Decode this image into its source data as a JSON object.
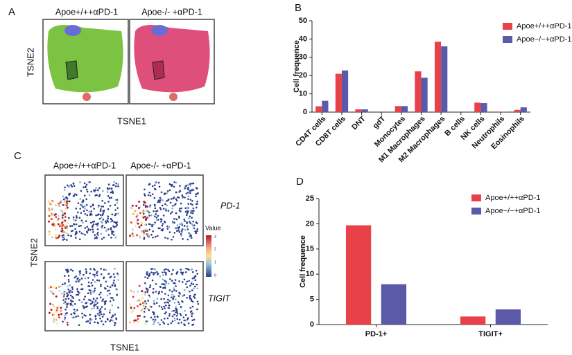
{
  "panels": {
    "a": {
      "letter": "A",
      "titles": [
        "Apoe+/++αPD-1",
        "Apoe-/- +αPD-1"
      ],
      "y_label": "TSNE2",
      "x_label": "TSNE1"
    },
    "c": {
      "letter": "C",
      "titles": [
        "Apoe+/++αPD-1",
        "Apoe-/- +αPD-1"
      ],
      "rows": [
        "PD-1",
        "TIGIT"
      ],
      "colorbar_title": "Value",
      "colorbar_ticks": [
        "3",
        "2",
        "1",
        "0"
      ],
      "y_label": "TSNE2",
      "x_label": "TSNE1"
    },
    "b_letter": "B",
    "d_letter": "D"
  },
  "chart_data": [
    {
      "type": "bar",
      "y_label": "Cell frequence",
      "categories": [
        "CD4T cells",
        "CD8T cells",
        "DNT",
        "gdT",
        "Monocytes",
        "M1 Macrophages",
        "M2 Macrophages",
        "B cells",
        "NK cells",
        "Neutrophils",
        "Eosinophils"
      ],
      "series": [
        {
          "name": "Apoe+/++αPD-1",
          "color": "#e8414a",
          "values": [
            3.2,
            21,
            1.5,
            0,
            3.3,
            22.3,
            38.5,
            0,
            5.2,
            0.3,
            1.2
          ]
        },
        {
          "name": "Apoe−/−+αPD-1",
          "color": "#5a5aa8",
          "values": [
            6.2,
            22.8,
            1.5,
            0,
            3.3,
            18.8,
            36,
            0,
            4.9,
            0.1,
            2.6
          ]
        }
      ],
      "ylim": [
        0,
        50
      ],
      "yticks": [
        0,
        10,
        20,
        30,
        40,
        50
      ],
      "legend": "top-right"
    },
    {
      "type": "bar",
      "y_label": "Cell frequence",
      "categories": [
        "PD-1+",
        "TIGIT+"
      ],
      "series": [
        {
          "name": "Apoe+/++αPD-1",
          "color": "#e8414a",
          "values": [
            19.7,
            1.6
          ]
        },
        {
          "name": "Apoe−/−+αPD-1",
          "color": "#5a5aa8",
          "values": [
            8,
            3
          ]
        }
      ],
      "ylim": [
        0,
        25
      ],
      "yticks": [
        0,
        5,
        10,
        15,
        20,
        25
      ],
      "legend": "top-right"
    }
  ]
}
